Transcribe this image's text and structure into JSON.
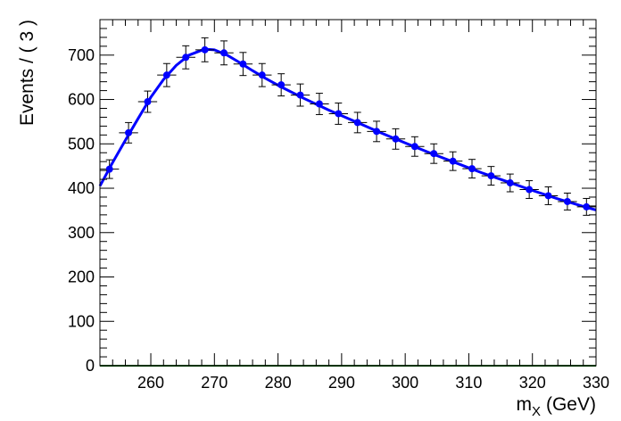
{
  "chart_data": {
    "type": "scatter",
    "title": "",
    "xlabel": "m_X (GeV)",
    "xlabel_main": "m",
    "xlabel_sub": "X",
    "xlabel_unit": "(GeV)",
    "ylabel": "Events / ( 3 )",
    "xlim": [
      252,
      330
    ],
    "ylim": [
      0,
      780
    ],
    "grid": false,
    "bin_width": 3,
    "x_ticks": [
      260,
      270,
      280,
      290,
      300,
      310,
      320,
      330
    ],
    "x_tick_labels": [
      "260",
      "270",
      "280",
      "290",
      "300",
      "310",
      "320",
      "330"
    ],
    "y_ticks": [
      0,
      100,
      200,
      300,
      400,
      500,
      600,
      700
    ],
    "y_tick_labels": [
      "0",
      "100",
      "200",
      "300",
      "400",
      "500",
      "600",
      "700"
    ],
    "series": [
      {
        "type": "errorbar_points",
        "color": "#0000ff",
        "x": [
          253.5,
          256.5,
          259.5,
          262.5,
          265.5,
          268.5,
          271.5,
          274.5,
          277.5,
          280.5,
          283.5,
          286.5,
          289.5,
          292.5,
          295.5,
          298.5,
          301.5,
          304.5,
          307.5,
          310.5,
          313.5,
          316.5,
          319.5,
          322.5,
          325.5,
          328.5
        ],
        "y": [
          443,
          525,
          595,
          655,
          695,
          712,
          705,
          680,
          655,
          633,
          610,
          590,
          568,
          548,
          528,
          511,
          494,
          478,
          461,
          444,
          428,
          412,
          397,
          383,
          370,
          358
        ],
        "yerr": [
          21,
          23,
          24,
          26,
          26,
          27,
          27,
          26,
          26,
          25,
          25,
          24,
          24,
          23,
          23,
          23,
          22,
          22,
          21,
          21,
          21,
          20,
          20,
          20,
          19,
          19
        ]
      },
      {
        "type": "line",
        "color": "#0000ff",
        "x": [
          252,
          254,
          256,
          258,
          260,
          262,
          264,
          266,
          268,
          269,
          270,
          272,
          274,
          276,
          278,
          280,
          284,
          288,
          292,
          296,
          300,
          304,
          308,
          312,
          316,
          320,
          324,
          328,
          330
        ],
        "y": [
          405,
          458,
          508,
          557,
          605,
          645,
          677,
          700,
          711,
          713,
          712,
          700,
          683,
          665,
          648,
          632,
          603,
          576,
          551,
          526,
          502,
          479,
          457,
          435,
          415,
          395,
          376,
          359,
          351
        ]
      },
      {
        "type": "line",
        "color": "#006400",
        "x": [
          252,
          330
        ],
        "y": [
          0,
          0
        ]
      }
    ]
  }
}
